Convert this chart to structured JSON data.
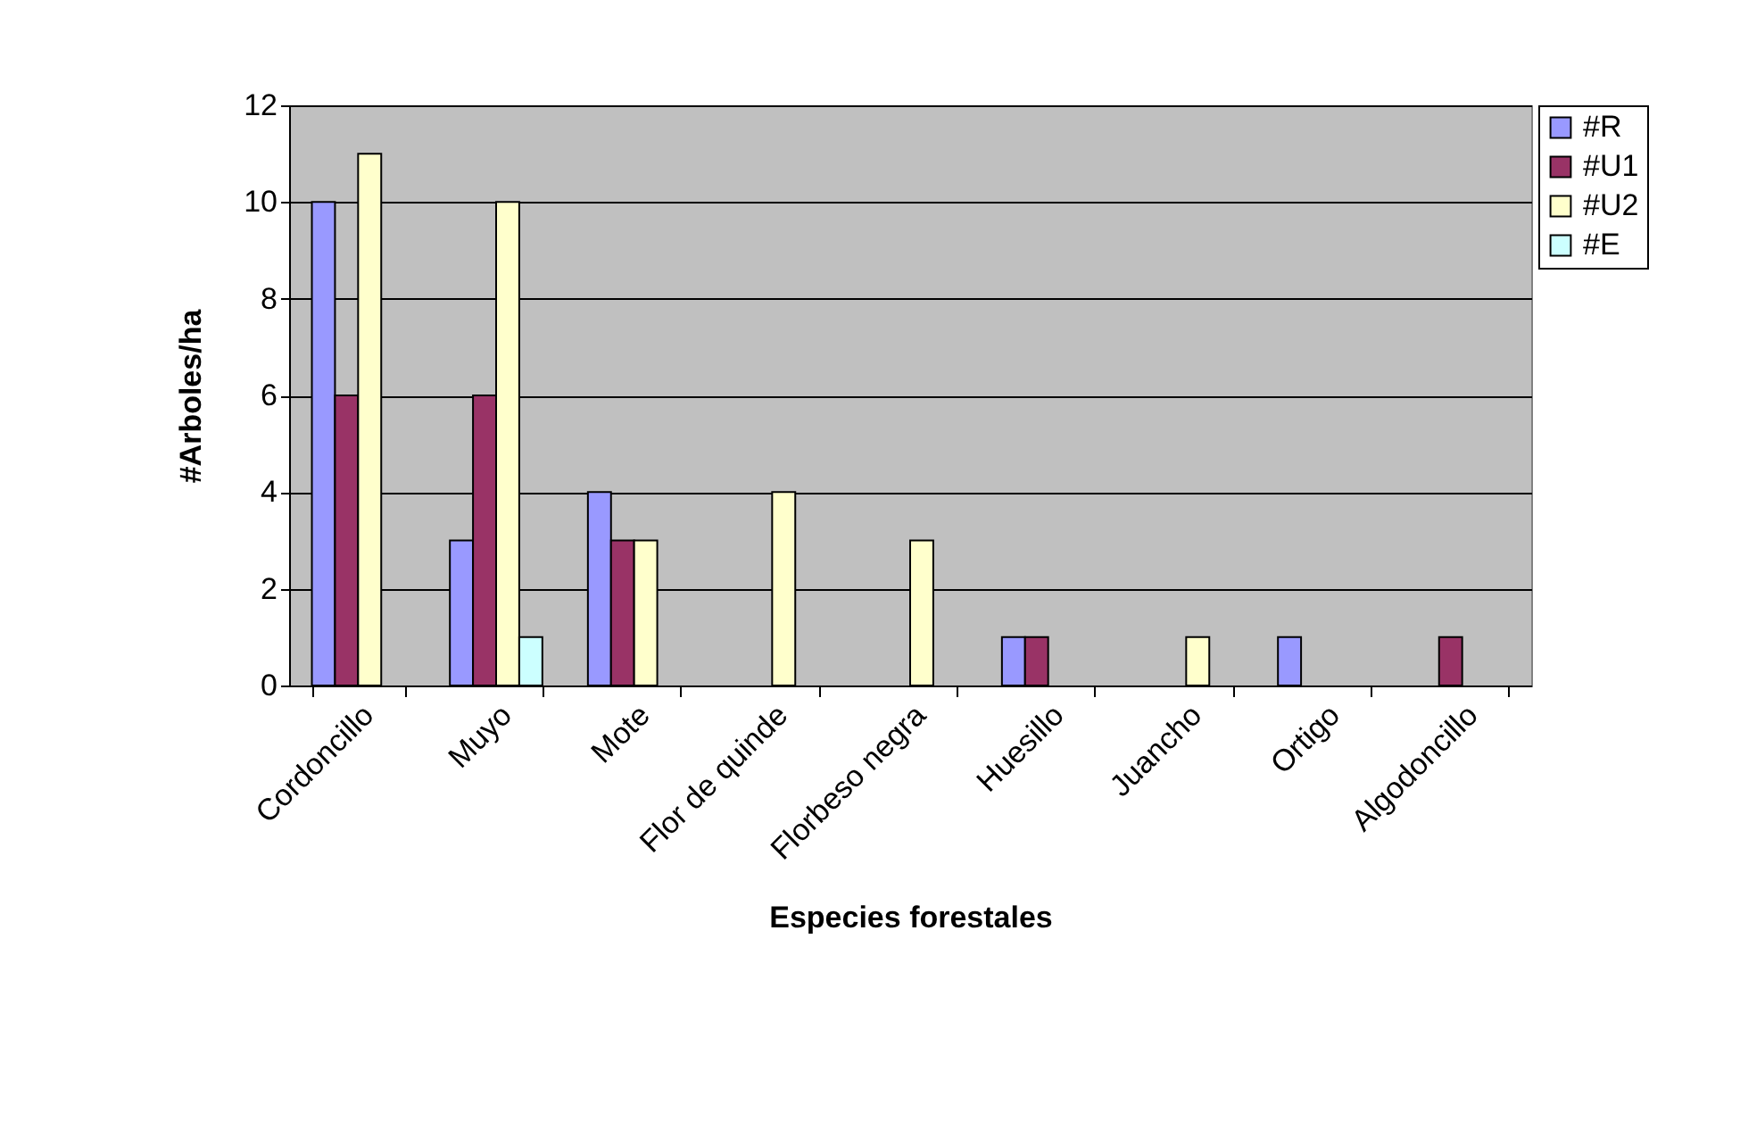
{
  "chart_data": {
    "type": "bar",
    "xlabel": "Especies forestales",
    "ylabel": "#Arboles/ha",
    "categories": [
      "Cordoncillo",
      "Muyo",
      "Mote",
      "Flor de quinde",
      "Florbeso negra",
      "Huesillo",
      "Juancho",
      "Ortigo",
      "Algodoncillo"
    ],
    "series": [
      {
        "name": "#R",
        "color": "#9999ff",
        "values": [
          10,
          3,
          4,
          0,
          0,
          1,
          0,
          1,
          0
        ]
      },
      {
        "name": "#U1",
        "color": "#993366",
        "values": [
          6,
          6,
          3,
          0,
          0,
          1,
          0,
          0,
          1
        ]
      },
      {
        "name": "#U2",
        "color": "#ffffcc",
        "values": [
          11,
          10,
          3,
          4,
          3,
          0,
          1,
          0,
          0
        ]
      },
      {
        "name": "#E",
        "color": "#ccffff",
        "values": [
          0,
          1,
          0,
          0,
          0,
          0,
          0,
          0,
          0
        ]
      }
    ],
    "ylim": [
      0,
      12
    ],
    "yticks": [
      0,
      2,
      4,
      6,
      8,
      10,
      12
    ],
    "grid": "y",
    "legend": "right"
  }
}
